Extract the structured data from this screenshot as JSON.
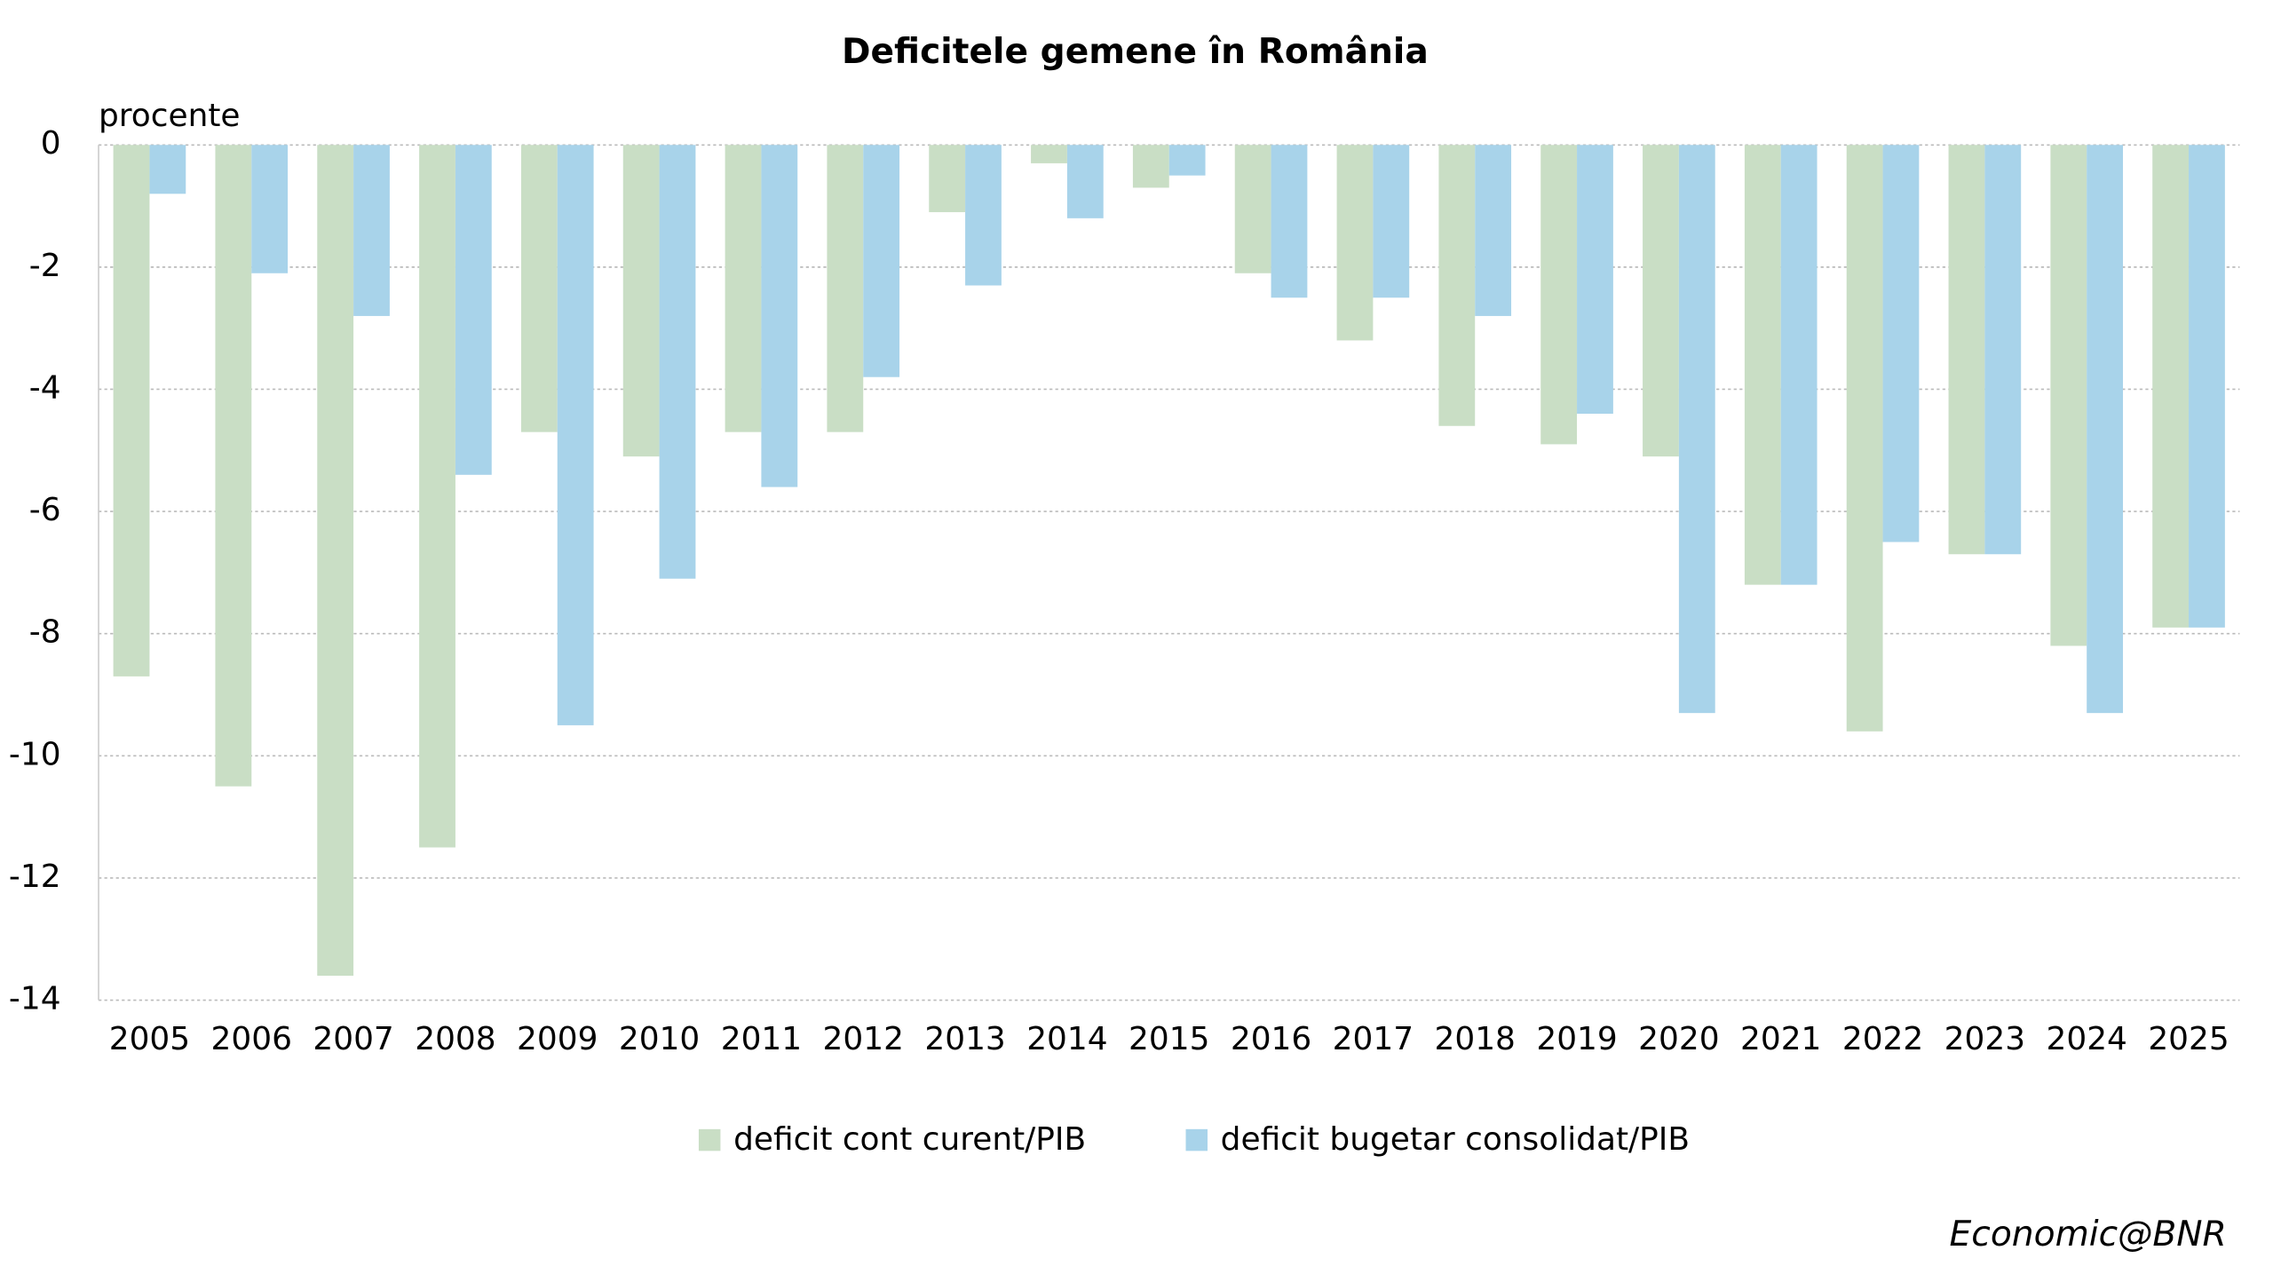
{
  "chart_data": {
    "type": "bar",
    "title": "Deficitele gemene în România",
    "y_label": "procente",
    "source": "Economic@BNR",
    "categories": [
      "2005",
      "2006",
      "2007",
      "2008",
      "2009",
      "2010",
      "2011",
      "2012",
      "2013",
      "2014",
      "2015",
      "2016",
      "2017",
      "2018",
      "2019",
      "2020",
      "2021",
      "2022",
      "2023",
      "2024",
      "2025"
    ],
    "series": [
      {
        "name": "deficit cont curent/PIB",
        "color": "#c9dec5",
        "values": [
          -8.7,
          -10.5,
          -13.6,
          -11.5,
          -4.7,
          -5.1,
          -4.7,
          -4.7,
          -1.1,
          -0.3,
          -0.7,
          -2.1,
          -3.2,
          -4.6,
          -4.9,
          -5.1,
          -7.2,
          -9.6,
          -6.7,
          -8.2,
          -7.9
        ]
      },
      {
        "name": "deficit bugetar consolidat/PIB",
        "color": "#a8d3ea",
        "values": [
          -0.8,
          -2.1,
          -2.8,
          -5.4,
          -9.5,
          -7.1,
          -5.6,
          -3.8,
          -2.3,
          -1.2,
          -0.5,
          -2.5,
          -2.5,
          -2.8,
          -4.4,
          -9.3,
          -7.2,
          -6.5,
          -6.7,
          -9.3,
          -7.9
        ]
      }
    ],
    "ylim": [
      -14,
      0
    ],
    "yticks": [
      0,
      -2,
      -4,
      -6,
      -8,
      -10,
      -12,
      -14
    ],
    "grid": true
  }
}
